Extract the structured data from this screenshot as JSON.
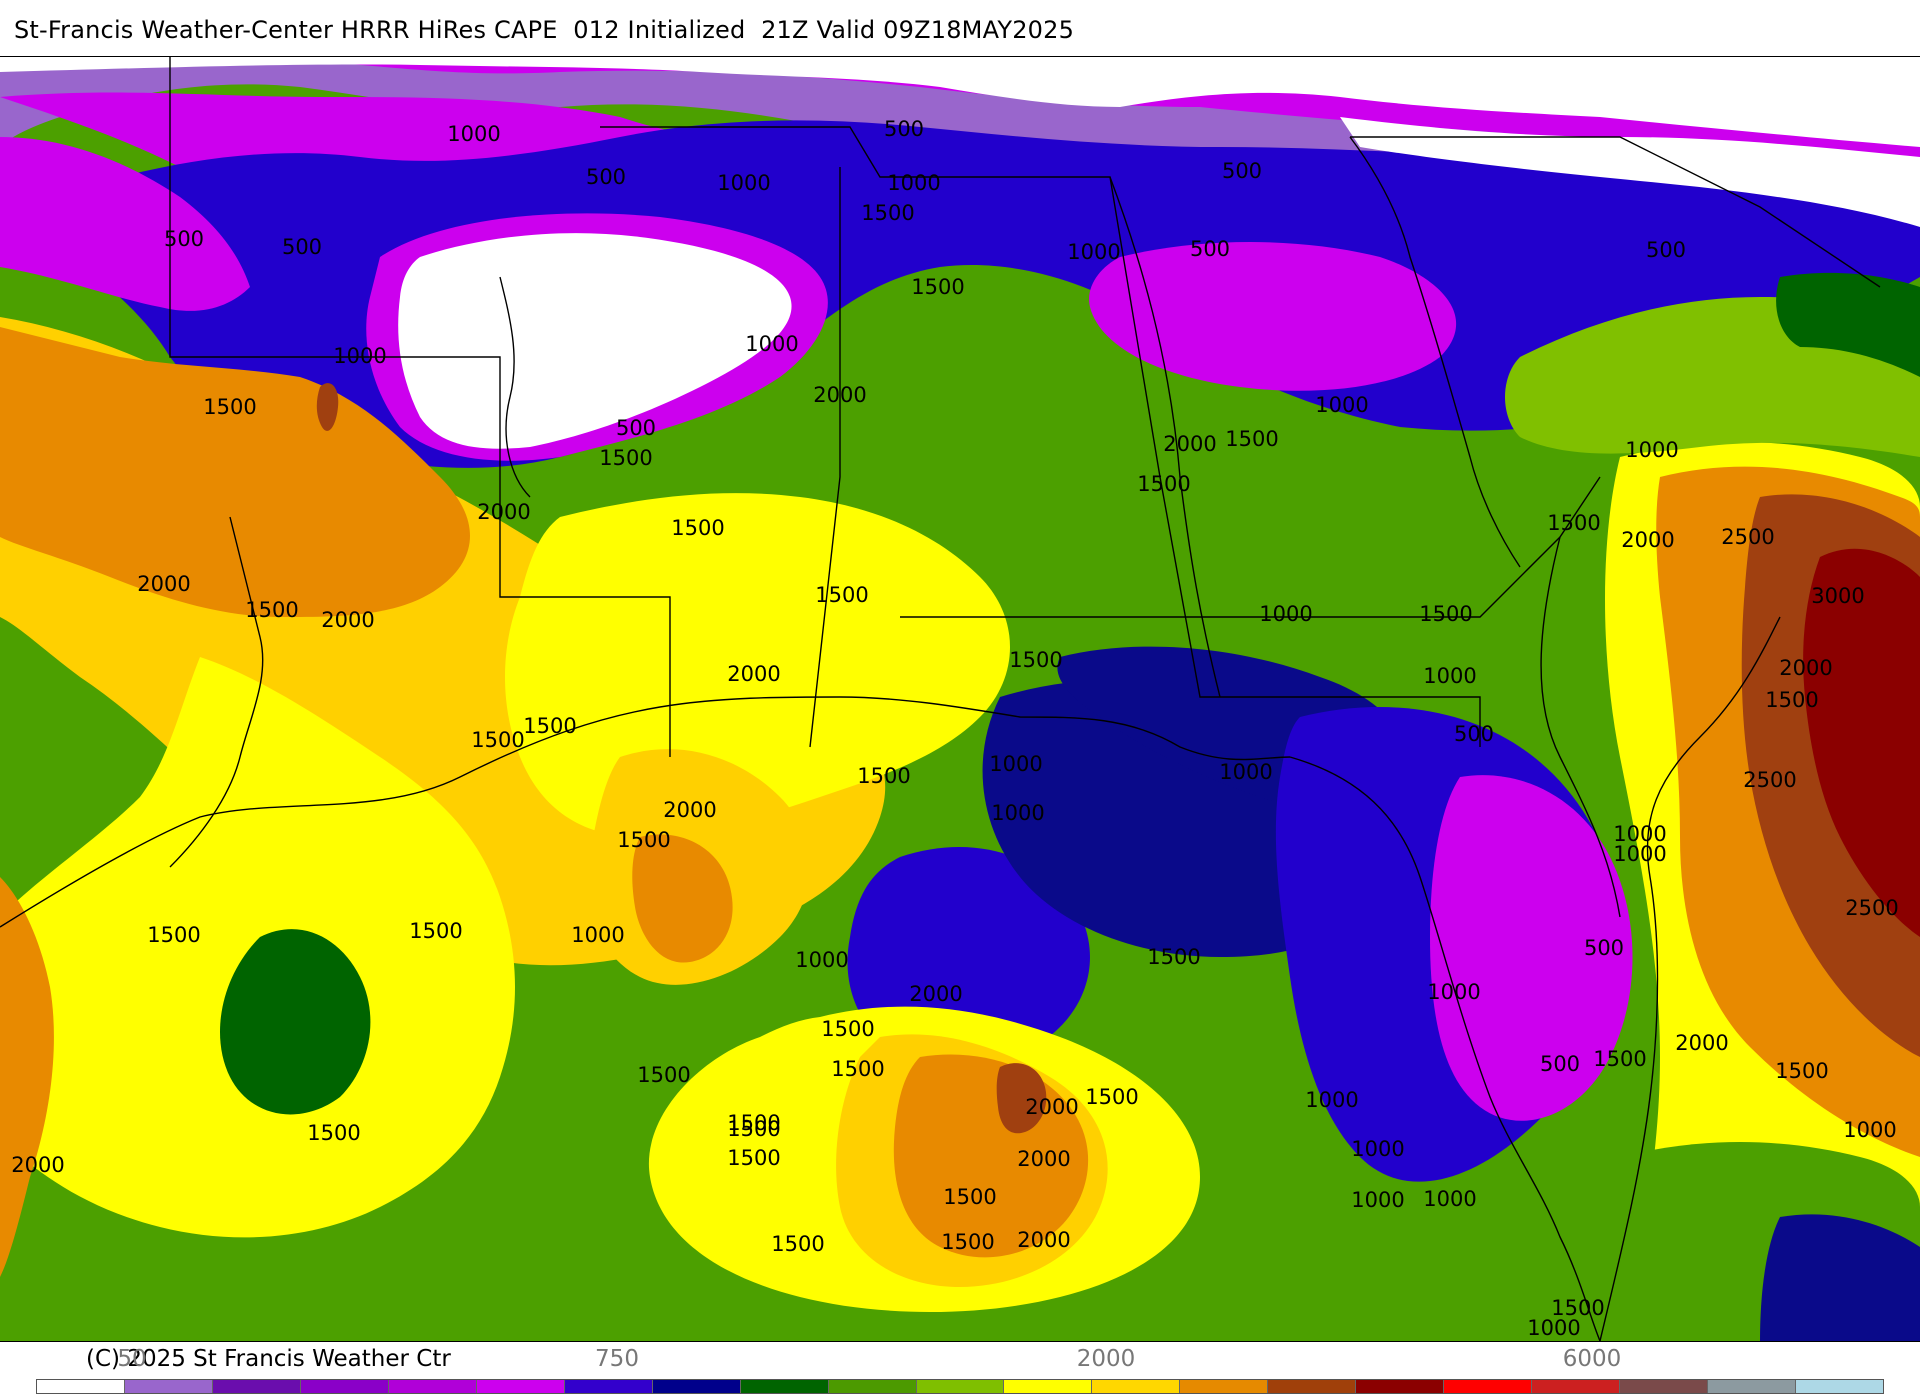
{
  "title": "St-Francis Weather-Center HRRR HiRes CAPE  012 Initialized  21Z Valid 09Z18MAY2025",
  "copyright": "(C) 2025 St Francis Weather Ctr",
  "legend": {
    "tick_labels": [
      "50",
      "750",
      "2000",
      "6000"
    ],
    "colors": [
      "#ffffff",
      "#9966cc",
      "#6a0dad",
      "#8a00c8",
      "#b000d8",
      "#cc00ee",
      "#3300cc",
      "#00008b",
      "#006400",
      "#4c9a00",
      "#7fbf00",
      "#ffff00",
      "#ffd700",
      "#e68a00",
      "#a0400a",
      "#8b0000",
      "#ff0000",
      "#cc2020",
      "#7a4a4a",
      "#8c9aa0",
      "#add8e6"
    ]
  },
  "map": {
    "colors": {
      "white": "#ffffff",
      "lavender": "#9966cc",
      "magenta": "#cc00ee",
      "violet": "#8a00c8",
      "blue": "#2200cc",
      "navy": "#0a0a8a",
      "green_dark": "#006400",
      "green": "#4ca000",
      "green_light": "#80c000",
      "yellow": "#ffff00",
      "gold": "#ffd000",
      "orange": "#e88a00",
      "rust": "#a04010",
      "darkred": "#8b0000",
      "border": "#000000"
    },
    "contour_labels": [
      "1000",
      "500",
      "500",
      "1000",
      "500",
      "1000",
      "1500",
      "500",
      "1000",
      "500",
      "1500",
      "1000",
      "500",
      "1000",
      "500",
      "1000",
      "1500",
      "2000",
      "500",
      "1500",
      "2000",
      "1500",
      "2000",
      "1500",
      "1500",
      "1000",
      "2000",
      "1500",
      "2500",
      "3000",
      "2000",
      "1500",
      "2000",
      "1500",
      "2000",
      "1500",
      "2000",
      "1500",
      "1500",
      "1000",
      "1000",
      "1500",
      "2000",
      "1500",
      "1500",
      "1000",
      "500",
      "1500",
      "1000",
      "1000",
      "2500",
      "1500",
      "1000",
      "1000",
      "1000",
      "2500",
      "1500",
      "1000",
      "500",
      "1000",
      "2000",
      "1500",
      "1500",
      "1500",
      "2000",
      "1500",
      "1500",
      "2000",
      "1500",
      "2000",
      "1500",
      "1500",
      "1000",
      "1500",
      "1500",
      "1500",
      "1000",
      "2000",
      "1500",
      "1000",
      "2000",
      "500",
      "1500",
      "1500",
      "1000",
      "1500",
      "1000",
      "1000"
    ]
  }
}
